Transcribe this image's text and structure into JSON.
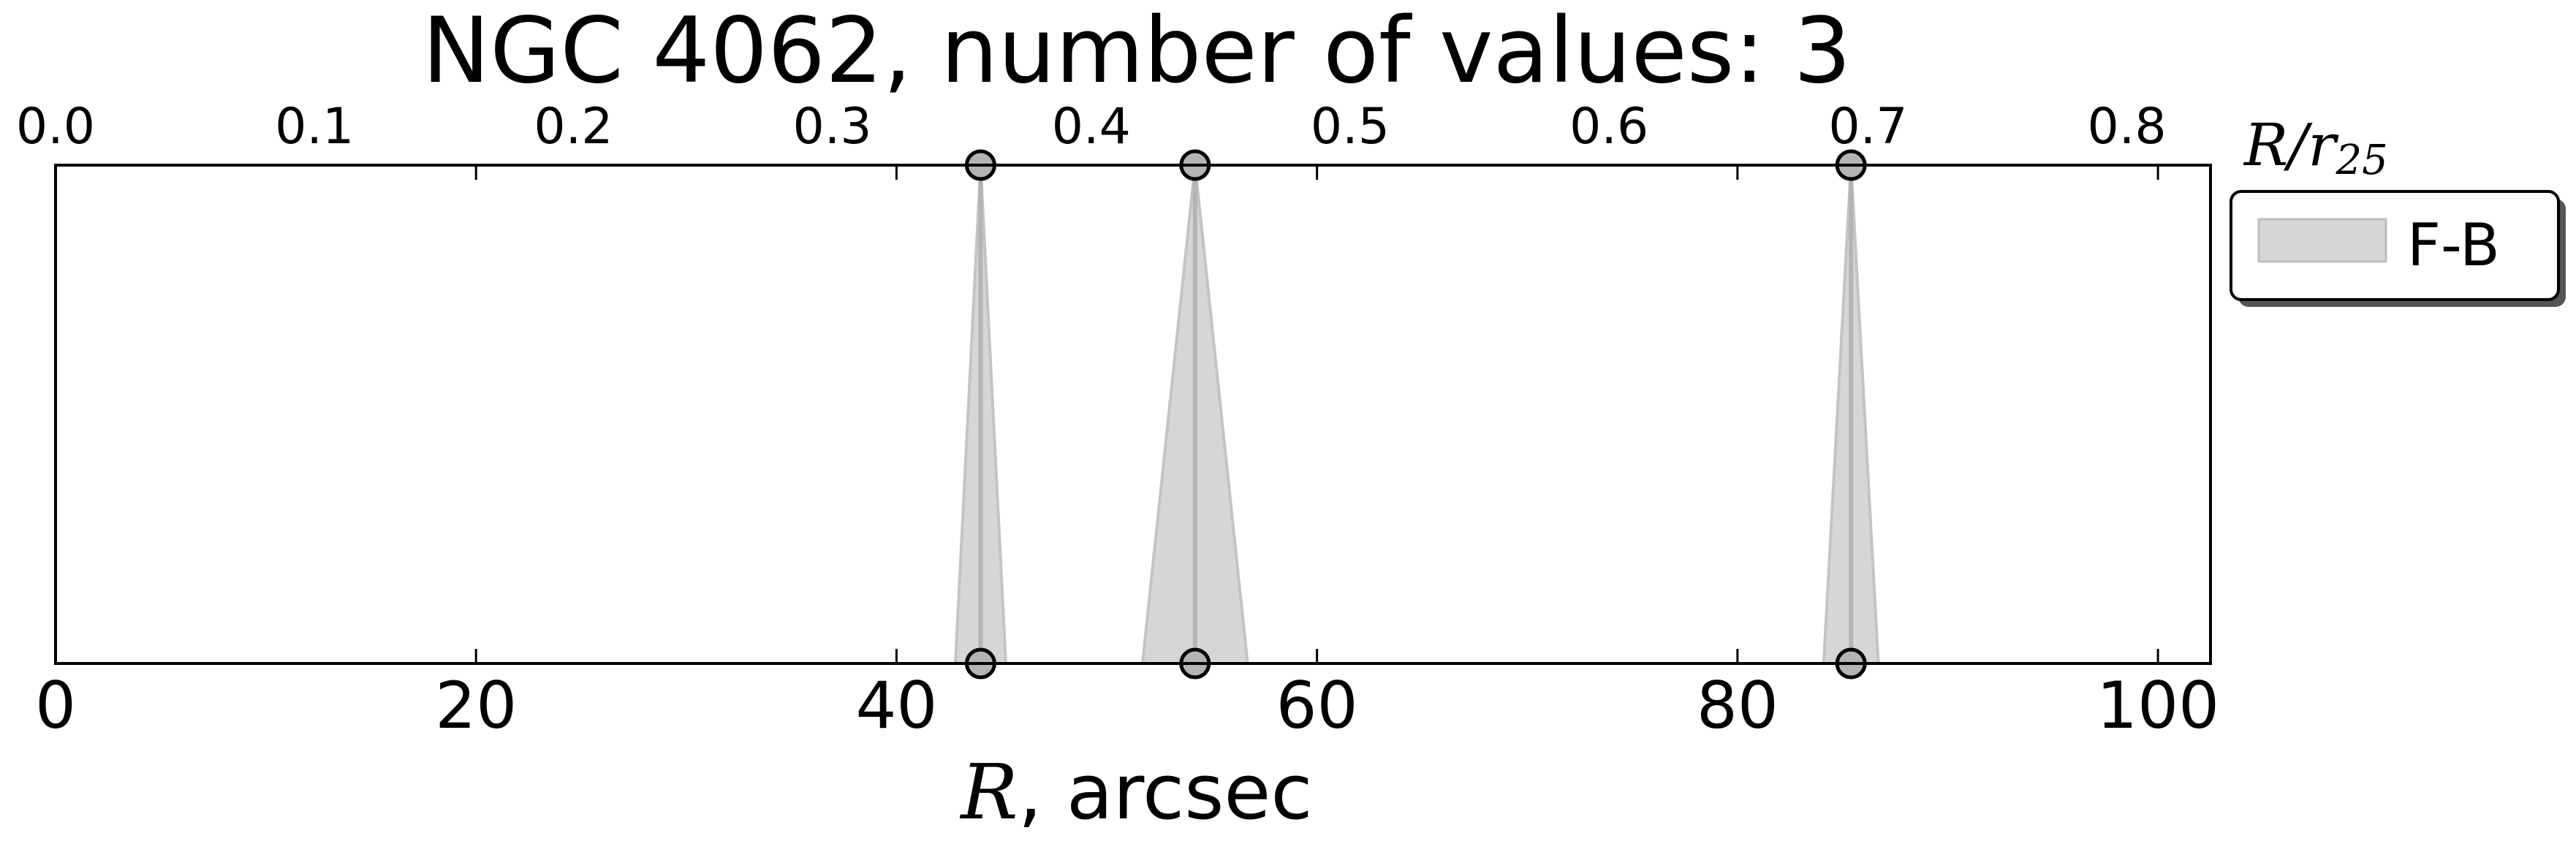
{
  "chart_data": {
    "type": "scatter",
    "title": "NGC 4062, number of values: 3",
    "xlabel": {
      "symbol": "R",
      "suffix": ", arcsec"
    },
    "x2label": {
      "symbol": "R/r",
      "subscript": "25"
    },
    "xlim": [
      0,
      102.5
    ],
    "x2lim": [
      0,
      0.8323
    ],
    "x_ticks": [
      0,
      20,
      40,
      60,
      80,
      100
    ],
    "x2_ticks": [
      "0.0",
      "0.1",
      "0.2",
      "0.3",
      "0.4",
      "0.5",
      "0.6",
      "0.7",
      "0.8"
    ],
    "legend": {
      "position": "right",
      "entries": [
        "F-B"
      ]
    },
    "grid": false,
    "series": [
      {
        "name": "F-B",
        "color": "#b4b4b4",
        "points": [
          {
            "x": 44.0,
            "x_lo": 42.8,
            "x_hi": 45.2
          },
          {
            "x": 54.2,
            "x_lo": 51.7,
            "x_hi": 56.7
          },
          {
            "x": 85.4,
            "x_lo": 84.1,
            "x_hi": 86.7
          }
        ]
      }
    ]
  }
}
